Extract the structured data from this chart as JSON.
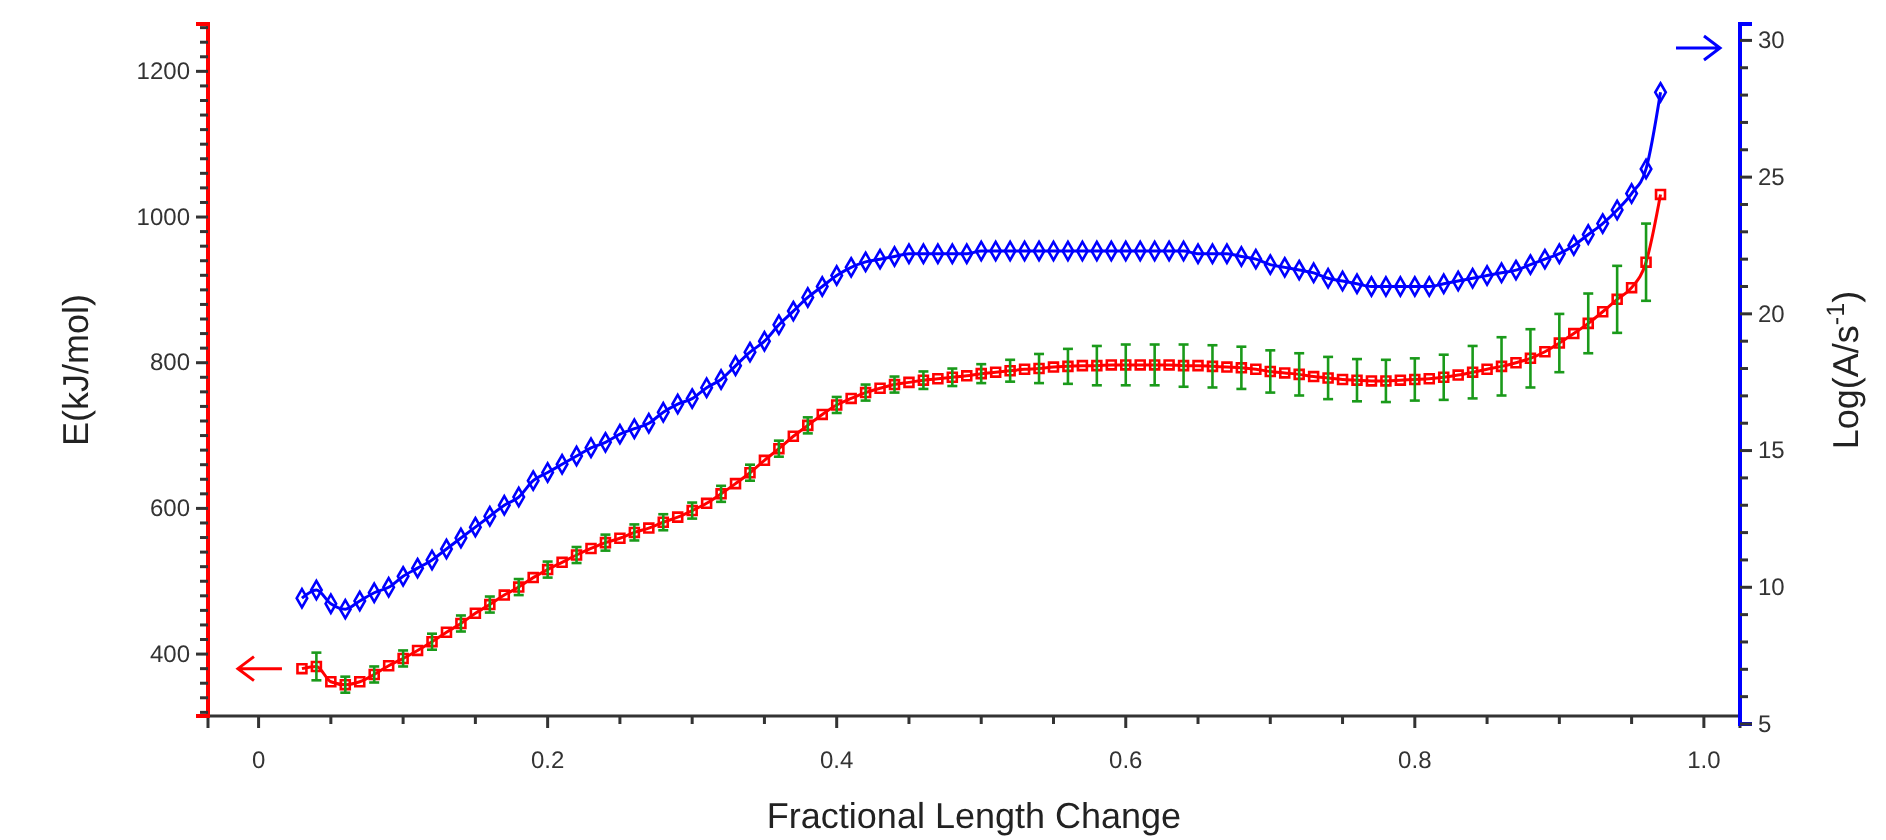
{
  "chart_data": {
    "type": "line",
    "xlabel": "Fractional Length Change",
    "ylabel": "E(kJ/mol)",
    "y2label": "Log(A/s$^{-1}$)",
    "xlim": [
      -0.035,
      1.025
    ],
    "xticks": [
      0,
      {
        "value": 0.05,
        "label": null
      },
      {
        "value": 0.1,
        "label": null
      },
      {
        "value": 0.15,
        "label": null
      },
      0.2,
      {
        "value": 0.25,
        "label": null
      },
      {
        "value": 0.3,
        "label": null
      },
      {
        "value": 0.35,
        "label": null
      },
      0.4,
      {
        "value": 0.45,
        "label": null
      },
      {
        "value": 0.5,
        "label": null
      },
      {
        "value": 0.55,
        "label": null
      },
      0.6,
      {
        "value": 0.65,
        "label": null
      },
      {
        "value": 0.7,
        "label": null
      },
      {
        "value": 0.75,
        "label": null
      },
      0.8,
      {
        "value": 0.85,
        "label": null
      },
      {
        "value": 0.9,
        "label": null
      },
      {
        "value": 0.95,
        "label": null
      },
      {
        "value": 1,
        "label": "1.0"
      }
    ],
    "ylim": [
      315,
      1265
    ],
    "yticks": [
      {
        "value": 320,
        "label": null
      },
      {
        "value": 340,
        "label": null
      },
      {
        "value": 360,
        "label": null
      },
      {
        "value": 380,
        "label": null
      },
      400,
      {
        "value": 420,
        "label": null
      },
      {
        "value": 440,
        "label": null
      },
      {
        "value": 460,
        "label": null
      },
      {
        "value": 480,
        "label": null
      },
      {
        "value": 500,
        "label": null
      },
      {
        "value": 520,
        "label": null
      },
      {
        "value": 540,
        "label": null
      },
      {
        "value": 560,
        "label": null
      },
      {
        "value": 580,
        "label": null
      },
      600,
      {
        "value": 620,
        "label": null
      },
      {
        "value": 640,
        "label": null
      },
      {
        "value": 660,
        "label": null
      },
      {
        "value": 680,
        "label": null
      },
      {
        "value": 700,
        "label": null
      },
      {
        "value": 720,
        "label": null
      },
      {
        "value": 740,
        "label": null
      },
      {
        "value": 760,
        "label": null
      },
      {
        "value": 780,
        "label": null
      },
      800,
      {
        "value": 820,
        "label": null
      },
      {
        "value": 840,
        "label": null
      },
      {
        "value": 860,
        "label": null
      },
      {
        "value": 880,
        "label": null
      },
      {
        "value": 900,
        "label": null
      },
      {
        "value": 920,
        "label": null
      },
      {
        "value": 940,
        "label": null
      },
      {
        "value": 960,
        "label": null
      },
      {
        "value": 980,
        "label": null
      },
      1000,
      {
        "value": 1020,
        "label": null
      },
      {
        "value": 1040,
        "label": null
      },
      {
        "value": 1060,
        "label": null
      },
      {
        "value": 1080,
        "label": null
      },
      {
        "value": 1100,
        "label": null
      },
      {
        "value": 1120,
        "label": null
      },
      {
        "value": 1140,
        "label": null
      },
      {
        "value": 1160,
        "label": null
      },
      {
        "value": 1180,
        "label": null
      },
      1200,
      {
        "value": 1220,
        "label": null
      },
      {
        "value": 1240,
        "label": null
      },
      {
        "value": 1260,
        "label": null
      }
    ],
    "y2lim": [
      5,
      30.6
    ],
    "y2ticks": [
      5,
      {
        "value": 6,
        "label": null
      },
      {
        "value": 7,
        "label": null
      },
      {
        "value": 8,
        "label": null
      },
      {
        "value": 9,
        "label": null
      },
      10,
      {
        "value": 11,
        "label": null
      },
      {
        "value": 12,
        "label": null
      },
      {
        "value": 13,
        "label": null
      },
      {
        "value": 14,
        "label": null
      },
      15,
      {
        "value": 16,
        "label": null
      },
      {
        "value": 17,
        "label": null
      },
      {
        "value": 18,
        "label": null
      },
      {
        "value": 19,
        "label": null
      },
      20,
      {
        "value": 21,
        "label": null
      },
      {
        "value": 22,
        "label": null
      },
      {
        "value": 23,
        "label": null
      },
      {
        "value": 24,
        "label": null
      },
      25,
      {
        "value": 26,
        "label": null
      },
      {
        "value": 27,
        "label": null
      },
      {
        "value": 28,
        "label": null
      },
      {
        "value": 29,
        "label": null
      },
      30
    ],
    "x": [
      0.03,
      0.04,
      0.05,
      0.06,
      0.07,
      0.08,
      0.09,
      0.1,
      0.11,
      0.12,
      0.13,
      0.14,
      0.15,
      0.16,
      0.17,
      0.18,
      0.19,
      0.2,
      0.21,
      0.22,
      0.23,
      0.24,
      0.25,
      0.26,
      0.27,
      0.28,
      0.29,
      0.3,
      0.31,
      0.32,
      0.33,
      0.34,
      0.35,
      0.36,
      0.37,
      0.38,
      0.39,
      0.4,
      0.41,
      0.42,
      0.43,
      0.44,
      0.45,
      0.46,
      0.47,
      0.48,
      0.49,
      0.5,
      0.51,
      0.52,
      0.53,
      0.54,
      0.55,
      0.56,
      0.57,
      0.58,
      0.59,
      0.6,
      0.61,
      0.62,
      0.63,
      0.64,
      0.65,
      0.66,
      0.67,
      0.68,
      0.69,
      0.7,
      0.71,
      0.72,
      0.73,
      0.74,
      0.75,
      0.76,
      0.77,
      0.78,
      0.79,
      0.8,
      0.81,
      0.82,
      0.83,
      0.84,
      0.85,
      0.86,
      0.87,
      0.88,
      0.89,
      0.9,
      0.91,
      0.92,
      0.93,
      0.94,
      0.95,
      0.96,
      0.97
    ],
    "series": [
      {
        "color": "#ff0000",
        "marker": "square",
        "values": [
          380,
          383,
          362,
          358,
          362,
          372,
          384,
          394,
          405,
          417,
          430,
          442,
          456,
          468,
          481,
          492,
          505,
          516,
          526,
          536,
          545,
          553,
          559,
          567,
          573,
          581,
          588,
          597,
          607,
          620,
          634,
          649,
          666,
          682,
          699,
          714,
          729,
          742,
          751,
          759,
          765,
          770,
          773,
          776,
          778,
          780,
          782,
          785,
          787,
          789,
          791,
          792,
          794,
          795,
          796,
          796,
          797,
          797,
          797,
          797,
          797,
          796,
          796,
          795,
          794,
          793,
          791,
          788,
          786,
          784,
          781,
          779,
          777,
          776,
          775,
          775,
          776,
          777,
          778,
          780,
          783,
          787,
          791,
          795,
          800,
          806,
          815,
          827,
          840,
          854,
          870,
          887,
          903,
          938,
          1031
        ],
        "errors": [
          null,
          19,
          null,
          11,
          null,
          11,
          null,
          11,
          null,
          11,
          null,
          11,
          null,
          11,
          null,
          11,
          null,
          11,
          null,
          11,
          null,
          11,
          null,
          11,
          null,
          11,
          null,
          11,
          null,
          11,
          null,
          11,
          null,
          11,
          null,
          11,
          null,
          11,
          null,
          11,
          null,
          11,
          null,
          12,
          null,
          12,
          null,
          13,
          null,
          15,
          null,
          20,
          null,
          24,
          null,
          27,
          null,
          28,
          null,
          28,
          null,
          29,
          null,
          29,
          null,
          29,
          null,
          29,
          null,
          29,
          null,
          29,
          null,
          29,
          null,
          29,
          null,
          29,
          null,
          31,
          null,
          36,
          null,
          40,
          null,
          40,
          null,
          40,
          null,
          41,
          null,
          46,
          null,
          53,
          null
        ]
      },
      {
        "color": "#0000ff",
        "marker": "diamond",
        "axis": "y2",
        "values": [
          9.6,
          9.9,
          9.4,
          9.2,
          9.5,
          9.8,
          10.0,
          10.4,
          10.7,
          11.0,
          11.4,
          11.8,
          12.2,
          12.6,
          13.0,
          13.3,
          13.9,
          14.2,
          14.5,
          14.8,
          15.1,
          15.3,
          15.6,
          15.8,
          16.0,
          16.4,
          16.7,
          16.9,
          17.3,
          17.6,
          18.1,
          18.6,
          19.0,
          19.6,
          20.1,
          20.6,
          21.0,
          21.4,
          21.7,
          21.9,
          22.0,
          22.1,
          22.2,
          22.2,
          22.2,
          22.2,
          22.2,
          22.3,
          22.3,
          22.3,
          22.3,
          22.3,
          22.3,
          22.3,
          22.3,
          22.3,
          22.3,
          22.3,
          22.3,
          22.3,
          22.3,
          22.3,
          22.2,
          22.2,
          22.2,
          22.1,
          22.0,
          21.8,
          21.7,
          21.6,
          21.5,
          21.3,
          21.2,
          21.1,
          21.0,
          21.0,
          21.0,
          21.0,
          21.0,
          21.1,
          21.2,
          21.3,
          21.4,
          21.5,
          21.6,
          21.8,
          22.0,
          22.2,
          22.5,
          22.9,
          23.3,
          23.8,
          24.4,
          25.3,
          28.1
        ]
      }
    ]
  }
}
